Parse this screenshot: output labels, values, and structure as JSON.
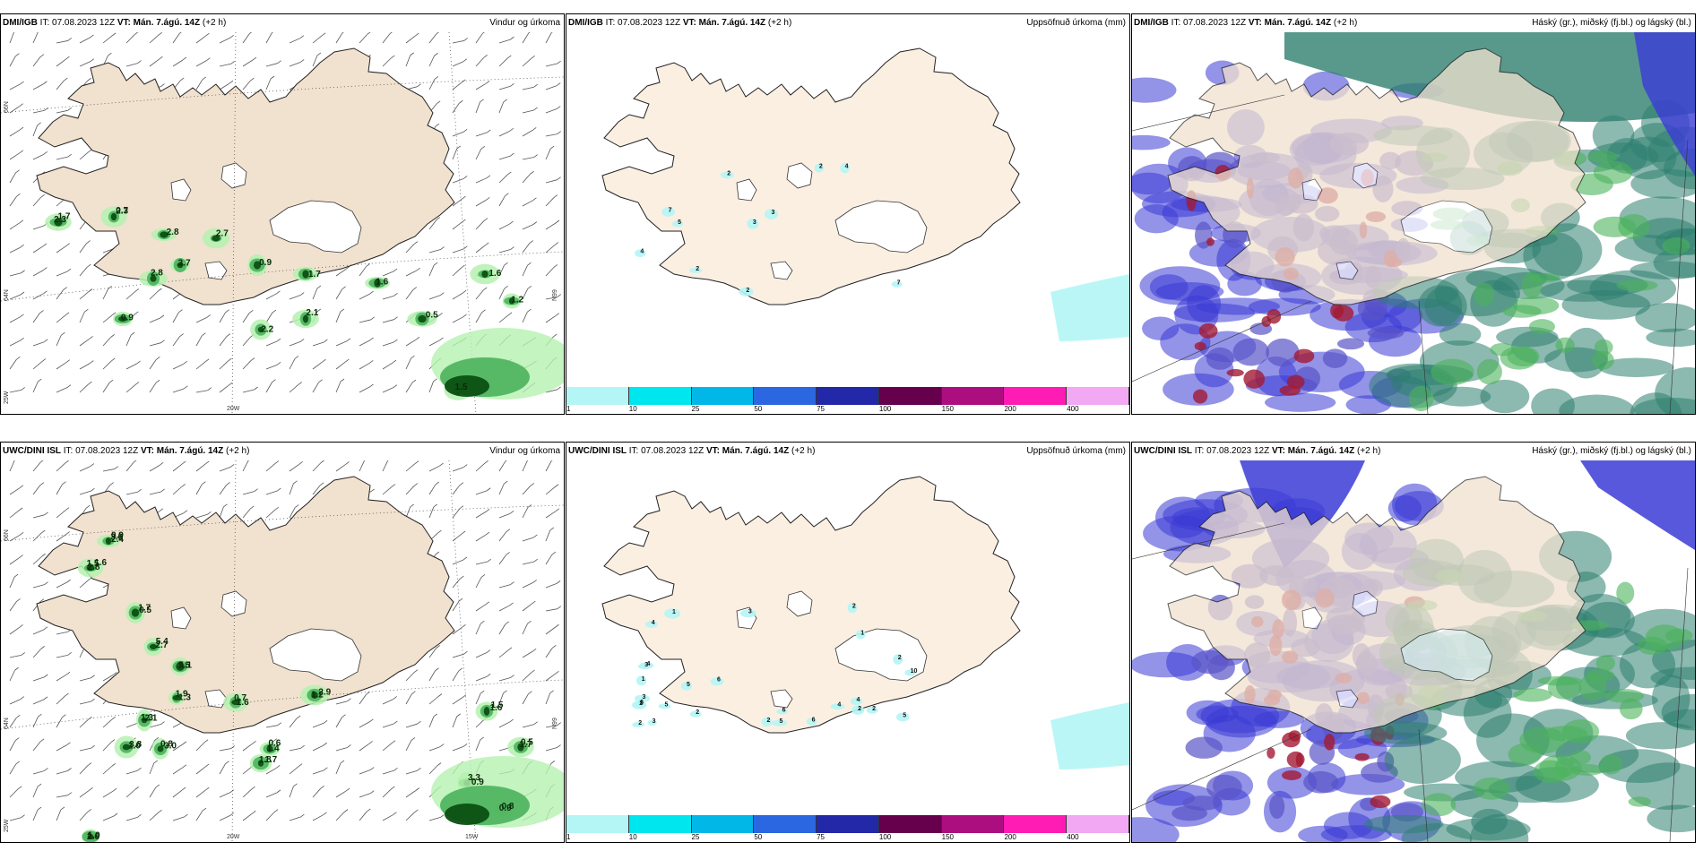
{
  "colors": {
    "land": "#f1e1cf",
    "land_light": "#fbefe2",
    "sea": "#ffffff",
    "green_light": "#b5f1b0",
    "green_mid": "#4bb35c",
    "green_dark": "#0b4f12",
    "blue_mark": "#3b3bd6",
    "purple_mark": "#5a54c8",
    "red_mark": "#a31a33",
    "teal_mark": "#2e7f6f",
    "colorbar": [
      "#b4f5f6",
      "#00e6ee",
      "#00b7e8",
      "#2a67e0",
      "#2228a8",
      "#66004d",
      "#ad0e7f",
      "#ff1cb5",
      "#f2a8f2"
    ]
  },
  "panels": [
    {
      "model": "DMI/IGB",
      "it_label": "IT:",
      "it": "07.08.2023 12Z",
      "vt_label": "VT:",
      "vt": "Mán. 7.ágú. 14Z",
      "lead": "(+2 h)",
      "title": "Vindur og úrkoma",
      "kind": "wind",
      "lat_labels": [
        "66N",
        "64N",
        "N99"
      ],
      "lon_labels": [
        "20W",
        "25W"
      ],
      "values": [
        "2.3",
        "1.7",
        "2.8",
        "2.7",
        "3.7",
        "2.8",
        "0.9",
        "1.7",
        "1.6",
        "0.9",
        "2.2",
        "2.1",
        "0.5",
        "1.6",
        "1.2",
        "1.5",
        "0.7",
        "2.3"
      ]
    },
    {
      "model": "DMI/IGB",
      "it_label": "IT:",
      "it": "07.08.2023 12Z",
      "vt_label": "VT:",
      "vt": "Mán. 7.ágú. 14Z",
      "lead": "(+2 h)",
      "title": "Uppsöfnuð úrkoma (mm)",
      "kind": "precip",
      "values": [
        "3",
        "3",
        "5",
        "2",
        "7",
        "2",
        "4",
        "7",
        "2",
        "4",
        "2"
      ],
      "colorbar_ticks": [
        "1",
        "10",
        "25",
        "50",
        "75",
        "100",
        "150",
        "200",
        "400"
      ]
    },
    {
      "model": "DMI/IGB",
      "it_label": "IT:",
      "it": "07.08.2023 12Z",
      "vt_label": "VT:",
      "vt": "Mán. 7.ágú. 14Z",
      "lead": "(+2 h)",
      "title": "Háský (gr.), miðský (fj.bl.) og lágský (bl.)",
      "kind": "cloud"
    },
    {
      "model": "UWC/DINI ISL",
      "it_label": "IT:",
      "it": "07.08.2023 12Z",
      "vt_label": "VT:",
      "vt": "Mán. 7.ágú. 14Z",
      "lead": "(+2 h)",
      "title": "Vindur og úrkoma",
      "kind": "wind",
      "lat_labels": [
        "66N",
        "64N",
        "N99"
      ],
      "lon_labels": [
        "20W",
        "15W",
        "25W"
      ],
      "values": [
        "0.9",
        "1.6",
        "1.7",
        "5.4",
        "1.1",
        "1.9",
        "2.1",
        "3.8",
        "0.8",
        "1.6",
        "2.9",
        "1.7",
        "1.4",
        "1.6",
        "1.7",
        "0.9",
        "0.8",
        "1.0",
        "2.4",
        "1.5",
        "0.5",
        "2.7",
        "1.5",
        "1.3",
        "1.3",
        "1.0",
        "3.0",
        "0.7",
        "1.2",
        "1.8",
        "0.6",
        "1.5",
        "0.5",
        "3.3",
        "0.9",
        "2.6",
        "3.6",
        "2.8"
      ]
    },
    {
      "model": "UWC/DINI ISL",
      "it_label": "IT:",
      "it": "07.08.2023 12Z",
      "vt_label": "VT:",
      "vt": "Mán. 7.ágú. 14Z",
      "lead": "(+2 h)",
      "title": "Uppsöfnuð úrkoma (mm)",
      "kind": "precip",
      "values": [
        "2",
        "2",
        "3",
        "3",
        "5",
        "6",
        "4",
        "10",
        "5",
        "4",
        "2",
        "4",
        "5",
        "3",
        "1",
        "1",
        "1",
        "2",
        "3",
        "2",
        "4",
        "2",
        "6",
        "6",
        "2",
        "5",
        "2",
        "6"
      ],
      "colorbar_ticks": [
        "1",
        "10",
        "25",
        "50",
        "75",
        "100",
        "150",
        "200",
        "400"
      ]
    },
    {
      "model": "UWC/DINI ISL",
      "it_label": "IT:",
      "it": "07.08.2023 12Z",
      "vt_label": "VT:",
      "vt": "Mán. 7.ágú. 14Z",
      "lead": "(+2 h)",
      "title": "Háský (gr.), miðský (fj.bl.) og lágský (bl.)",
      "kind": "cloud"
    }
  ]
}
